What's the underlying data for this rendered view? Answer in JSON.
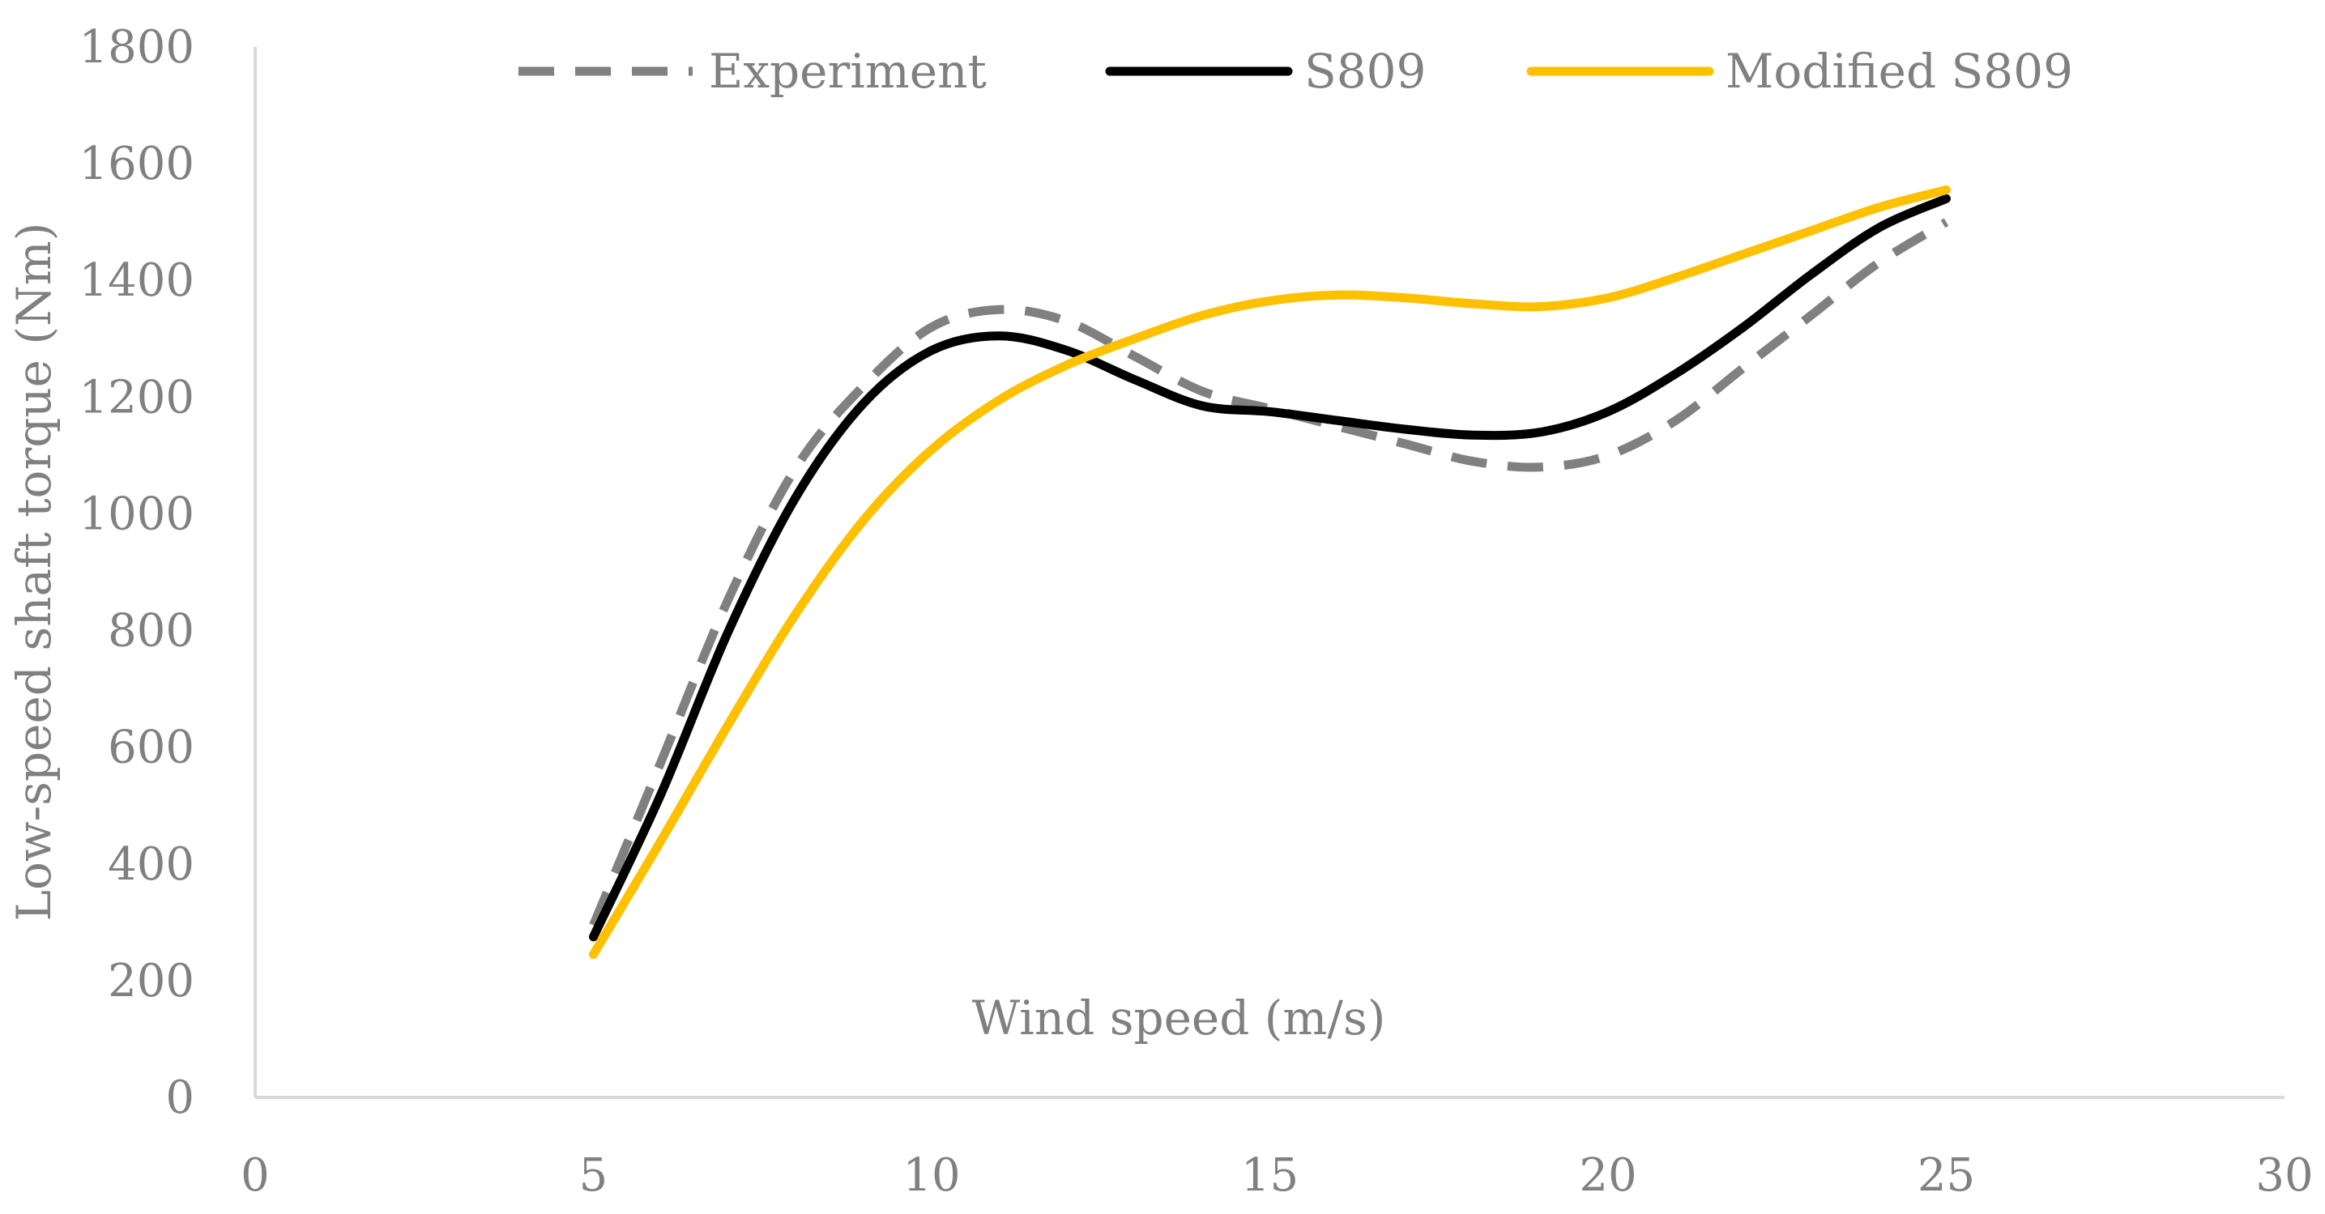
{
  "chart_data": {
    "type": "line",
    "xlabel": "Wind speed (m/s)",
    "ylabel": "Low-speed shaft torque (Nm)",
    "xlim": [
      0,
      30
    ],
    "ylim": [
      0,
      1800
    ],
    "xticks": [
      0,
      5,
      10,
      15,
      20,
      25,
      30
    ],
    "yticks": [
      0,
      200,
      400,
      600,
      800,
      1000,
      1200,
      1400,
      1600,
      1800
    ],
    "grid": false,
    "legend_position": "top",
    "series": [
      {
        "name": "Experiment",
        "color": "#808080",
        "dash": "dashed",
        "x": [
          5,
          6,
          7,
          8,
          9,
          10,
          11,
          12,
          13,
          14,
          15,
          16,
          17,
          18,
          19,
          20,
          21,
          22,
          23,
          24,
          25
        ],
        "y": [
          295,
          575,
          855,
          1080,
          1220,
          1320,
          1350,
          1330,
          1270,
          1210,
          1180,
          1150,
          1120,
          1090,
          1080,
          1100,
          1160,
          1250,
          1340,
          1430,
          1500
        ]
      },
      {
        "name": "S809",
        "color": "#000000",
        "dash": "solid",
        "x": [
          5,
          6,
          7,
          8,
          9,
          10,
          11,
          12,
          13,
          14,
          15,
          16,
          17,
          18,
          19,
          20,
          21,
          22,
          23,
          24,
          25
        ],
        "y": [
          275,
          520,
          800,
          1030,
          1190,
          1280,
          1305,
          1280,
          1230,
          1185,
          1175,
          1160,
          1145,
          1135,
          1140,
          1175,
          1240,
          1320,
          1410,
          1490,
          1540
        ]
      },
      {
        "name": "Modified S809",
        "color": "#FFC000",
        "dash": "solid",
        "x": [
          5,
          6,
          7,
          8,
          9,
          10,
          11,
          12,
          13,
          14,
          15,
          16,
          17,
          18,
          19,
          20,
          21,
          22,
          23,
          24,
          25
        ],
        "y": [
          245,
          440,
          640,
          830,
          990,
          1110,
          1195,
          1255,
          1300,
          1340,
          1365,
          1375,
          1370,
          1360,
          1355,
          1370,
          1405,
          1445,
          1485,
          1525,
          1555
        ]
      }
    ]
  }
}
